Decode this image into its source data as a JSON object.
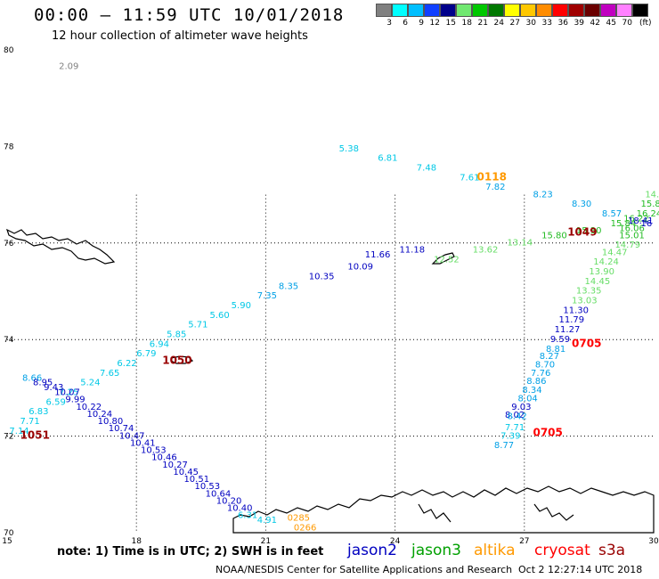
{
  "header": {
    "title": "00:00 – 11:59 UTC 10/01/2018",
    "subtitle": "12 hour collection of altimeter wave heights"
  },
  "scale": {
    "unit": "(ft)",
    "bins": [
      {
        "color": "#808080",
        "label": "3"
      },
      {
        "color": "#00ffff",
        "label": "6"
      },
      {
        "color": "#00bfff",
        "label": "9"
      },
      {
        "color": "#1040ff",
        "label": "12"
      },
      {
        "color": "#00008b",
        "label": "15"
      },
      {
        "color": "#70e870",
        "label": "18"
      },
      {
        "color": "#00c800",
        "label": "21"
      },
      {
        "color": "#007800",
        "label": "24"
      },
      {
        "color": "#ffff00",
        "label": "27"
      },
      {
        "color": "#ffc800",
        "label": "30"
      },
      {
        "color": "#ff8c00",
        "label": "33"
      },
      {
        "color": "#ff0000",
        "label": "36"
      },
      {
        "color": "#a00000",
        "label": "39"
      },
      {
        "color": "#6b0000",
        "label": "42"
      },
      {
        "color": "#c000c0",
        "label": "45"
      },
      {
        "color": "#ff80ff",
        "label": "70"
      },
      {
        "color": "#000000",
        "label": ""
      }
    ]
  },
  "map": {
    "lon_ticks": [
      "15",
      "18",
      "21",
      "24",
      "27",
      "30"
    ],
    "lat_ticks": [
      "80",
      "78",
      "76",
      "74",
      "72",
      "70"
    ],
    "colors": {
      "jason2": "#0000c0",
      "jason3": "#00a000",
      "altika": "#ff9900",
      "cryosat": "#ff0000",
      "s3a": "#990000",
      "cyan": "#00c8e6",
      "lightblue": "#00a0e6",
      "lightgreen": "#66dd66",
      "midgreen": "#22bb22",
      "gray": "#808080",
      "maroon": "#990000"
    },
    "observations": [
      {
        "lon": 16.2,
        "lat": 79.6,
        "value": "2.09",
        "color": "gray"
      },
      {
        "lon": 22.7,
        "lat": 77.9,
        "value": "5.38",
        "color": "cyan"
      },
      {
        "lon": 23.6,
        "lat": 77.7,
        "value": "6.81",
        "color": "cyan"
      },
      {
        "lon": 24.5,
        "lat": 77.5,
        "value": "7.48",
        "color": "cyan"
      },
      {
        "lon": 25.5,
        "lat": 77.3,
        "value": "7.61",
        "color": "cyan"
      },
      {
        "lon": 26.1,
        "lat": 77.1,
        "value": "7.82",
        "color": "lightblue"
      },
      {
        "lon": 27.2,
        "lat": 76.95,
        "value": "8.23",
        "color": "lightblue"
      },
      {
        "lon": 28.1,
        "lat": 76.75,
        "value": "8.30",
        "color": "lightblue"
      },
      {
        "lon": 28.8,
        "lat": 76.55,
        "value": "8.57",
        "color": "lightblue"
      },
      {
        "lon": 29.8,
        "lat": 76.95,
        "value": "14.",
        "color": "lightgreen"
      },
      {
        "lon": 29.7,
        "lat": 76.75,
        "value": "15.8",
        "color": "midgreen"
      },
      {
        "lon": 29.6,
        "lat": 76.55,
        "value": "16.24",
        "color": "midgreen"
      },
      {
        "lon": 29.3,
        "lat": 76.45,
        "value": "16.22",
        "color": "midgreen"
      },
      {
        "lon": 29.0,
        "lat": 76.35,
        "value": "15.84",
        "color": "midgreen"
      },
      {
        "lon": 29.2,
        "lat": 76.25,
        "value": "16.06",
        "color": "midgreen"
      },
      {
        "lon": 28.2,
        "lat": 76.2,
        "value": "15.30",
        "color": "midgreen"
      },
      {
        "lon": 27.4,
        "lat": 76.1,
        "value": "15.80",
        "color": "midgreen"
      },
      {
        "lon": 29.2,
        "lat": 76.1,
        "value": "15.01",
        "color": "midgreen"
      },
      {
        "lon": 29.7,
        "lat": 76.35,
        "value": "16",
        "color": "jason2"
      },
      {
        "lon": 29.4,
        "lat": 76.4,
        "value": "18.41",
        "color": "jason2"
      },
      {
        "lon": 29.1,
        "lat": 75.9,
        "value": "14.79",
        "color": "lightgreen"
      },
      {
        "lon": 28.8,
        "lat": 75.75,
        "value": "14.47",
        "color": "lightgreen"
      },
      {
        "lon": 28.6,
        "lat": 75.55,
        "value": "14.24",
        "color": "lightgreen"
      },
      {
        "lon": 26.6,
        "lat": 75.95,
        "value": "13.14",
        "color": "lightgreen"
      },
      {
        "lon": 25.8,
        "lat": 75.8,
        "value": "13.62",
        "color": "lightgreen"
      },
      {
        "lon": 24.9,
        "lat": 75.6,
        "value": "12.52",
        "color": "lightgreen"
      },
      {
        "lon": 28.5,
        "lat": 75.35,
        "value": "13.90",
        "color": "lightgreen"
      },
      {
        "lon": 28.4,
        "lat": 75.15,
        "value": "14.45",
        "color": "lightgreen"
      },
      {
        "lon": 28.2,
        "lat": 74.95,
        "value": "13.35",
        "color": "lightgreen"
      },
      {
        "lon": 28.1,
        "lat": 74.75,
        "value": "13.03",
        "color": "lightgreen"
      },
      {
        "lon": 27.9,
        "lat": 74.55,
        "value": "11.30",
        "color": "jason2"
      },
      {
        "lon": 27.8,
        "lat": 74.35,
        "value": "11.79",
        "color": "jason2"
      },
      {
        "lon": 27.7,
        "lat": 74.15,
        "value": "11.27",
        "color": "jason2"
      },
      {
        "lon": 27.6,
        "lat": 73.95,
        "value": "9.59",
        "color": "jason2"
      },
      {
        "lon": 27.5,
        "lat": 73.75,
        "value": "8.81",
        "color": "lightblue"
      },
      {
        "lon": 27.35,
        "lat": 73.6,
        "value": "8.27",
        "color": "lightblue"
      },
      {
        "lon": 27.25,
        "lat": 73.42,
        "value": "8.70",
        "color": "lightblue"
      },
      {
        "lon": 27.15,
        "lat": 73.25,
        "value": "7.76",
        "color": "lightblue"
      },
      {
        "lon": 27.05,
        "lat": 73.08,
        "value": "8.86",
        "color": "lightblue"
      },
      {
        "lon": 26.95,
        "lat": 72.9,
        "value": "8.34",
        "color": "lightblue"
      },
      {
        "lon": 26.85,
        "lat": 72.72,
        "value": "8.04",
        "color": "lightblue"
      },
      {
        "lon": 26.7,
        "lat": 72.55,
        "value": "9.03",
        "color": "jason2"
      },
      {
        "lon": 26.55,
        "lat": 72.38,
        "value": "8.02",
        "color": "jason2"
      },
      {
        "lon": 26.6,
        "lat": 72.35,
        "value": "8.42",
        "color": "lightblue"
      },
      {
        "lon": 26.55,
        "lat": 72.12,
        "value": "7.71",
        "color": "cyan"
      },
      {
        "lon": 26.45,
        "lat": 71.95,
        "value": "7.39",
        "color": "cyan"
      },
      {
        "lon": 26.3,
        "lat": 71.75,
        "value": "8.77",
        "color": "lightblue"
      },
      {
        "lon": 24.1,
        "lat": 75.8,
        "value": "11.18",
        "color": "jason2"
      },
      {
        "lon": 23.3,
        "lat": 75.7,
        "value": "11.66",
        "color": "jason2"
      },
      {
        "lon": 22.9,
        "lat": 75.45,
        "value": "10.09",
        "color": "jason2"
      },
      {
        "lon": 22.0,
        "lat": 75.25,
        "value": "10.35",
        "color": "jason2"
      },
      {
        "lon": 21.3,
        "lat": 75.05,
        "value": "8.35",
        "color": "lightblue"
      },
      {
        "lon": 20.8,
        "lat": 74.85,
        "value": "7.35",
        "color": "lightblue"
      },
      {
        "lon": 20.2,
        "lat": 74.65,
        "value": "5.90",
        "color": "cyan"
      },
      {
        "lon": 19.7,
        "lat": 74.45,
        "value": "5.60",
        "color": "cyan"
      },
      {
        "lon": 19.2,
        "lat": 74.25,
        "value": "5.71",
        "color": "cyan"
      },
      {
        "lon": 18.7,
        "lat": 74.05,
        "value": "5.85",
        "color": "cyan"
      },
      {
        "lon": 18.3,
        "lat": 73.85,
        "value": "6.94",
        "color": "cyan"
      },
      {
        "lon": 18.0,
        "lat": 73.65,
        "value": "6.79",
        "color": "cyan"
      },
      {
        "lon": 17.55,
        "lat": 73.45,
        "value": "6.22",
        "color": "cyan"
      },
      {
        "lon": 17.15,
        "lat": 73.25,
        "value": "7.65",
        "color": "cyan"
      },
      {
        "lon": 16.7,
        "lat": 73.05,
        "value": "5.24",
        "color": "cyan"
      },
      {
        "lon": 16.2,
        "lat": 72.85,
        "value": "7.25",
        "color": "cyan"
      },
      {
        "lon": 15.9,
        "lat": 72.65,
        "value": "6.59",
        "color": "cyan"
      },
      {
        "lon": 15.5,
        "lat": 72.45,
        "value": "6.83",
        "color": "cyan"
      },
      {
        "lon": 15.3,
        "lat": 72.25,
        "value": "7.71",
        "color": "cyan"
      },
      {
        "lon": 15.05,
        "lat": 72.05,
        "value": "7.14",
        "color": "cyan"
      },
      {
        "lon": 15.35,
        "lat": 73.15,
        "value": "8.66",
        "color": "lightblue"
      },
      {
        "lon": 15.6,
        "lat": 73.05,
        "value": "8.95",
        "color": "jason2"
      },
      {
        "lon": 15.85,
        "lat": 72.95,
        "value": "9.43",
        "color": "jason2"
      },
      {
        "lon": 16.1,
        "lat": 72.85,
        "value": "10.07",
        "color": "jason2"
      },
      {
        "lon": 16.35,
        "lat": 72.7,
        "value": "9.99",
        "color": "jason2"
      },
      {
        "lon": 16.6,
        "lat": 72.55,
        "value": "10.22",
        "color": "jason2"
      },
      {
        "lon": 16.85,
        "lat": 72.4,
        "value": "10.24",
        "color": "jason2"
      },
      {
        "lon": 17.1,
        "lat": 72.25,
        "value": "10.80",
        "color": "jason2"
      },
      {
        "lon": 17.35,
        "lat": 72.1,
        "value": "10.74",
        "color": "jason2"
      },
      {
        "lon": 17.6,
        "lat": 71.95,
        "value": "10.47",
        "color": "jason2"
      },
      {
        "lon": 17.85,
        "lat": 71.8,
        "value": "10.41",
        "color": "jason2"
      },
      {
        "lon": 18.1,
        "lat": 71.65,
        "value": "10.53",
        "color": "jason2"
      },
      {
        "lon": 18.35,
        "lat": 71.5,
        "value": "10.46",
        "color": "jason2"
      },
      {
        "lon": 18.6,
        "lat": 71.35,
        "value": "10.27",
        "color": "jason2"
      },
      {
        "lon": 18.85,
        "lat": 71.2,
        "value": "10.45",
        "color": "jason2"
      },
      {
        "lon": 19.1,
        "lat": 71.05,
        "value": "10.51",
        "color": "jason2"
      },
      {
        "lon": 19.35,
        "lat": 70.9,
        "value": "10.53",
        "color": "jason2"
      },
      {
        "lon": 19.6,
        "lat": 70.75,
        "value": "10.64",
        "color": "jason2"
      },
      {
        "lon": 19.85,
        "lat": 70.6,
        "value": "10.20",
        "color": "jason2"
      },
      {
        "lon": 20.1,
        "lat": 70.45,
        "value": "10.40",
        "color": "jason2"
      },
      {
        "lon": 20.35,
        "lat": 70.3,
        "value": "6.31",
        "color": "cyan"
      },
      {
        "lon": 20.8,
        "lat": 70.2,
        "value": "4.91",
        "color": "cyan"
      },
      {
        "lon": 21.5,
        "lat": 70.25,
        "value": "0285",
        "color": "altika"
      },
      {
        "lon": 21.65,
        "lat": 70.05,
        "value": "0266",
        "color": "altika"
      }
    ],
    "pass_labels": [
      {
        "lon": 25.9,
        "lat": 77.3,
        "text": "0118",
        "color": "altika"
      },
      {
        "lon": 28.0,
        "lat": 76.15,
        "text": "1049",
        "color": "maroon"
      },
      {
        "lon": 18.6,
        "lat": 73.5,
        "text": "1050",
        "color": "maroon"
      },
      {
        "lon": 15.3,
        "lat": 71.95,
        "text": "1051",
        "color": "maroon"
      },
      {
        "lon": 28.1,
        "lat": 73.85,
        "text": "0705",
        "color": "cryosat"
      },
      {
        "lon": 27.2,
        "lat": 72.0,
        "text": "0705",
        "color": "cryosat"
      }
    ]
  },
  "footer": {
    "note": "note:  1) Time is in UTC;  2) SWH is in feet",
    "satellites": [
      {
        "name": "jason2",
        "color": "#0000c0"
      },
      {
        "name": "jason3",
        "color": "#00a000"
      },
      {
        "name": "altika",
        "color": "#ff9900"
      },
      {
        "name": "cryosat",
        "color": "#ff0000"
      },
      {
        "name": "s3a",
        "color": "#990000"
      }
    ],
    "credit": "NOAA/NESDIS Center for Satellite Applications and Research",
    "timestamp": "Oct  2 12:27:14 UTC 2018"
  }
}
